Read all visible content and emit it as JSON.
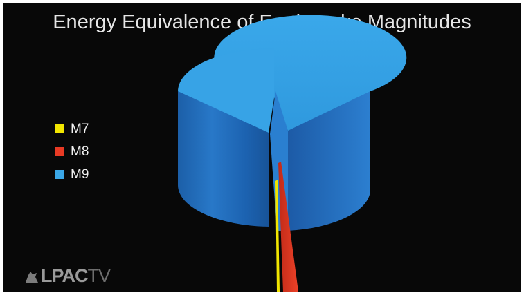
{
  "chart_data": {
    "type": "3d-volume",
    "title": "Energy Equivalence of Earthquake Magnitudes",
    "series": [
      {
        "name": "M7",
        "color": "#f2e600"
      },
      {
        "name": "M8",
        "color": "#e83a24"
      },
      {
        "name": "M9",
        "color": "#3aa6e6"
      }
    ],
    "legend_position": "left"
  },
  "logo": {
    "bold": "LPAC",
    "thin": "TV",
    "mark_icon": "wolf-silhouette-icon"
  }
}
